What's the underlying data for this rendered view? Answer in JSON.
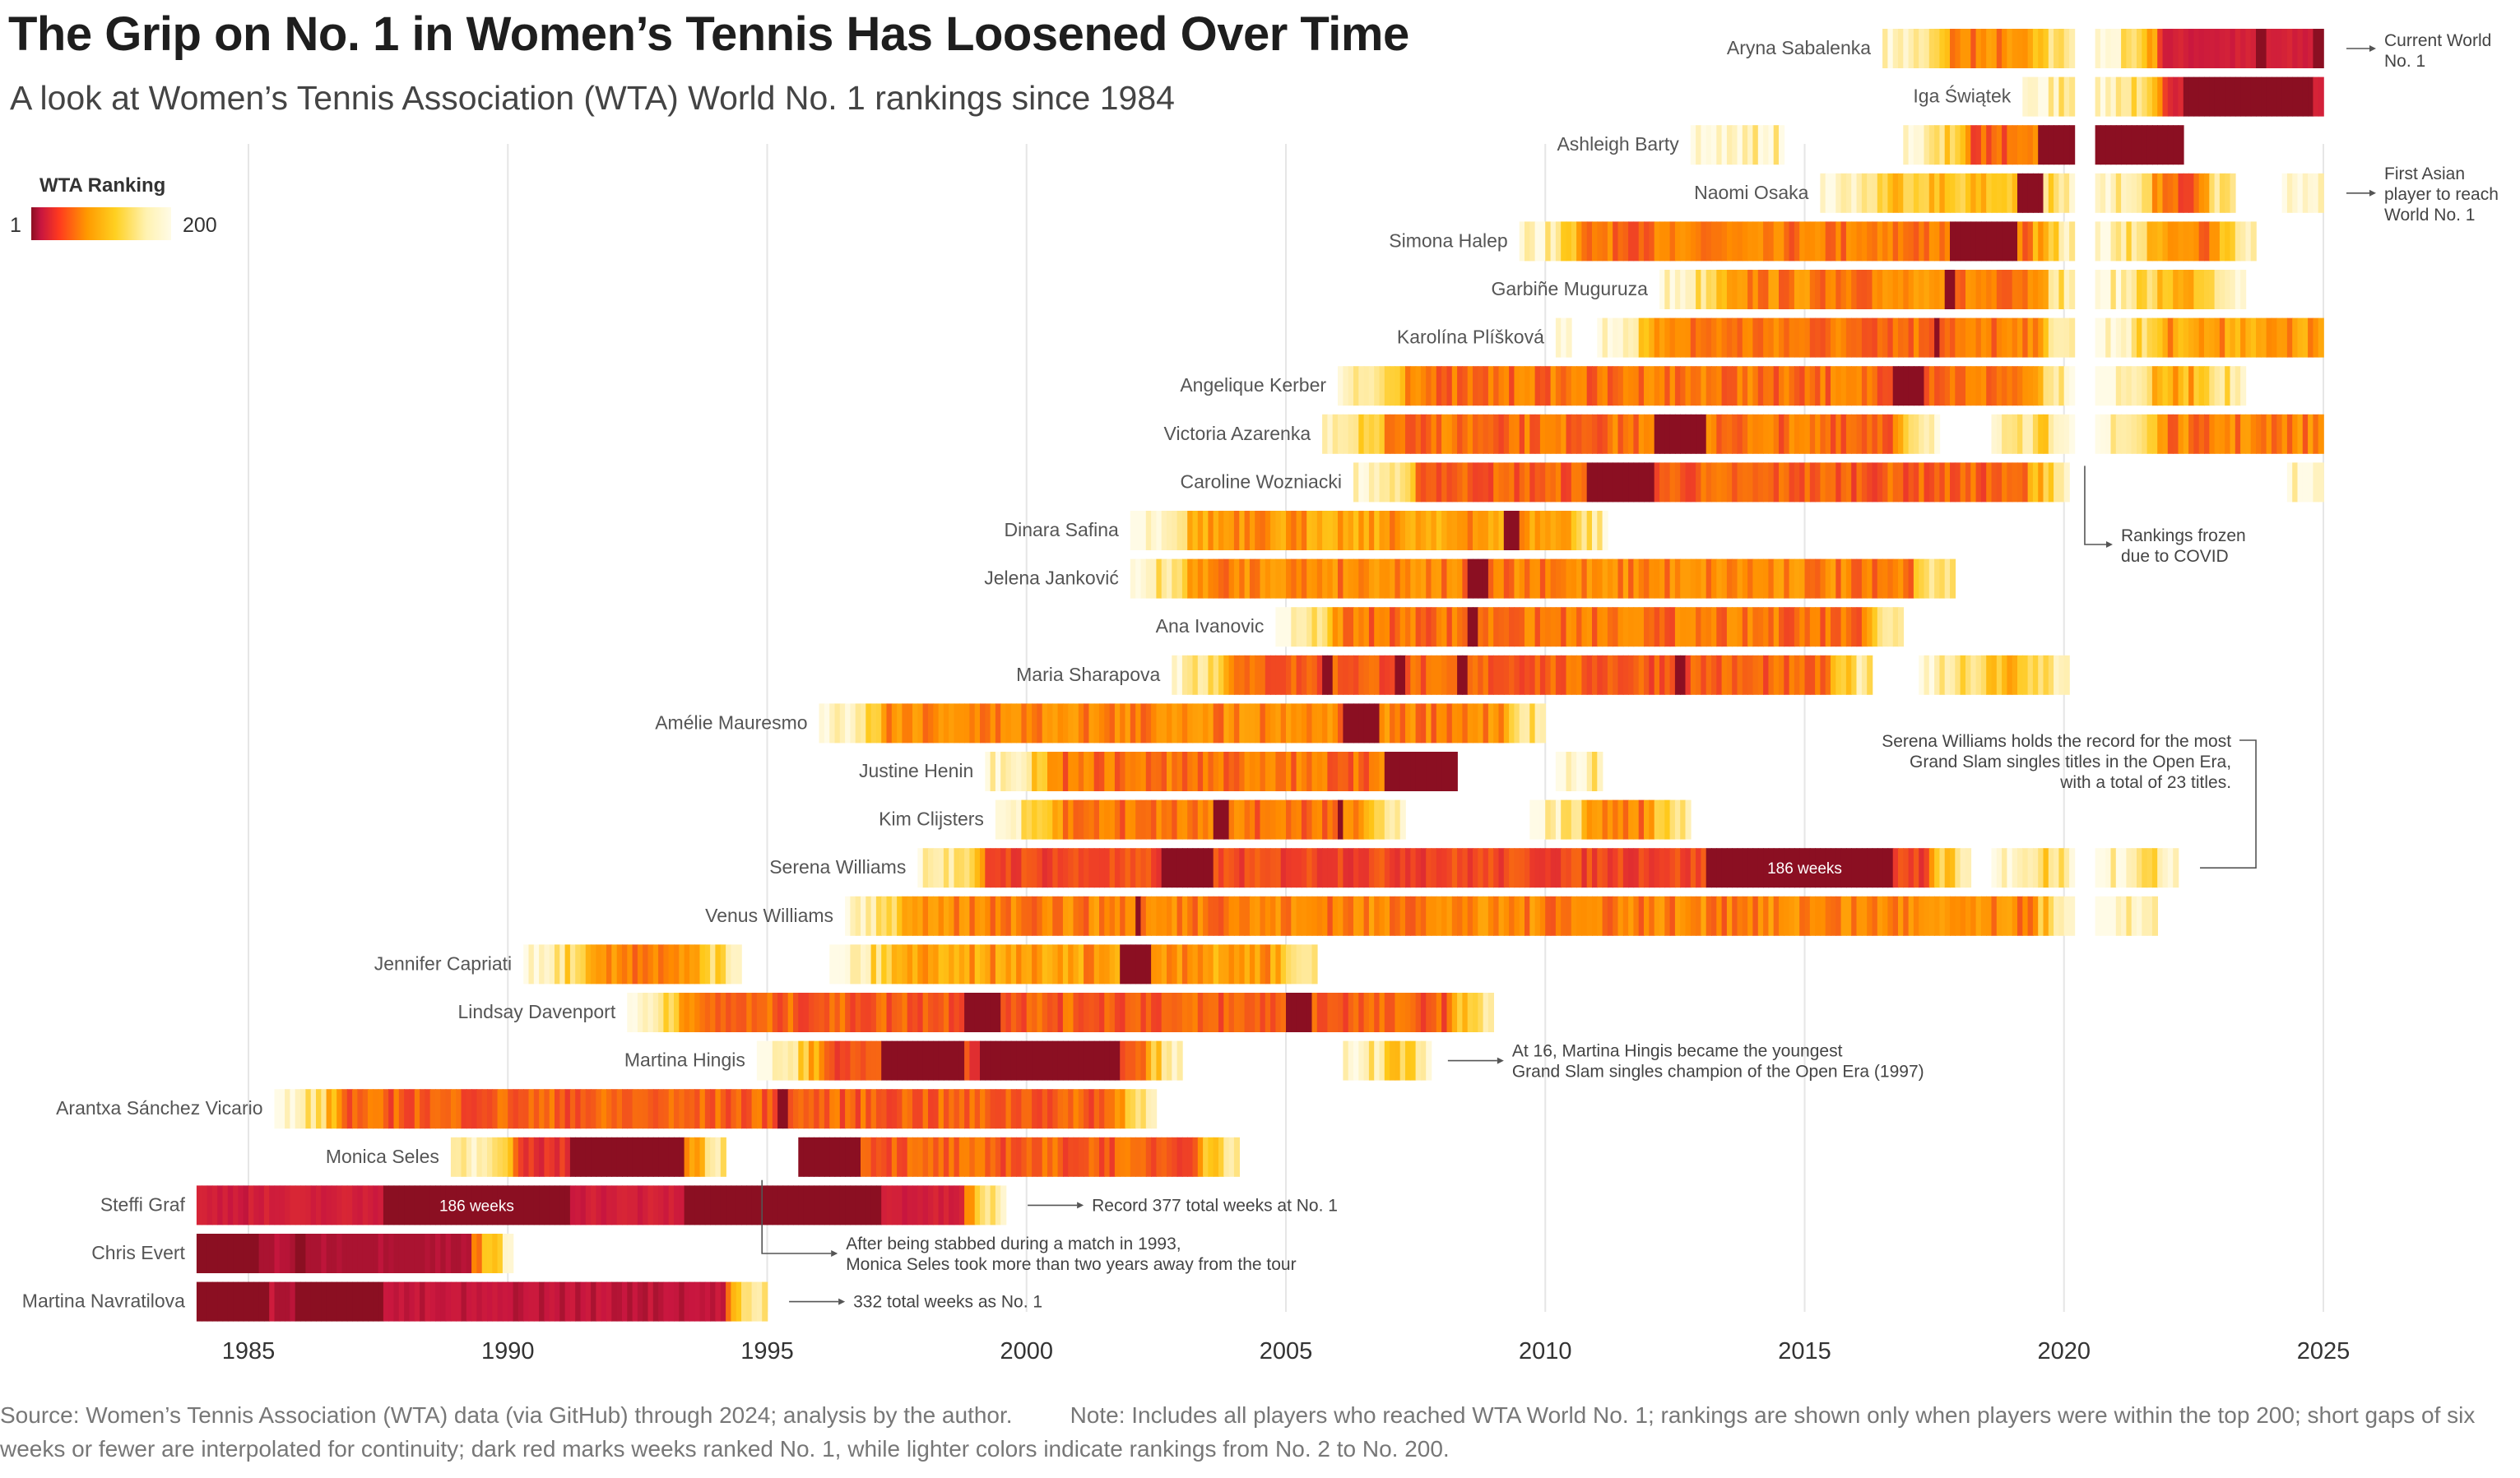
{
  "title": "The Grip on No. 1 in Women’s Tennis Has Loosened Over Time",
  "subtitle": "A look at Women’s Tennis Association (WTA) World No. 1 rankings since 1984",
  "legend": {
    "title": "WTA Ranking",
    "min_label": "1",
    "max_label": "200"
  },
  "footer": {
    "source": "Source: Women’s Tennis Association (WTA) data (via GitHub) through 2024; analysis by the author.",
    "note": "Note: Includes all players who reached WTA World No. 1; rankings are shown only when players were within the top 200; short gaps of six weeks or fewer are interpolated for continuity; dark red marks weeks ranked No. 1, while lighter colors indicate rankings from No. 2 to No. 200."
  },
  "colors": {
    "no1": "#8b0f22",
    "grid": "#e6e6e6",
    "text": "#333333"
  },
  "chart_data": {
    "type": "heatmap",
    "x_axis": {
      "ticks": [
        1985,
        1990,
        1995,
        2000,
        2005,
        2010,
        2015,
        2020,
        2025
      ],
      "range": [
        1984,
        2025.2
      ]
    },
    "color_scale": {
      "metric": "WTA Ranking",
      "min": 1,
      "max": 200
    },
    "players": [
      {
        "name": "Aryna Sabalenka",
        "segments": [
          [
            2016.5,
            2020.2,
            30
          ],
          [
            2020.6,
            2025.0,
            5
          ]
        ],
        "no1": [
          [
            2023.7,
            2023.9
          ],
          [
            2024.8,
            2025.0
          ]
        ]
      },
      {
        "name": "Iga Świątek",
        "segments": [
          [
            2019.2,
            2020.2,
            70
          ],
          [
            2020.6,
            2025.0,
            10
          ]
        ],
        "no1": [
          [
            2022.3,
            2024.8
          ]
        ]
      },
      {
        "name": "Ashleigh Barty",
        "segments": [
          [
            2012.8,
            2014.6,
            160
          ],
          [
            2016.9,
            2020.2,
            20
          ],
          [
            2020.6,
            2022.3,
            1
          ]
        ],
        "no1": [
          [
            2019.5,
            2020.2
          ],
          [
            2020.6,
            2022.3
          ]
        ]
      },
      {
        "name": "Naomi Osaka",
        "segments": [
          [
            2015.3,
            2020.2,
            60
          ],
          [
            2020.6,
            2023.3,
            20
          ],
          [
            2024.2,
            2025.0,
            90
          ]
        ],
        "no1": [
          [
            2019.1,
            2019.6
          ]
        ]
      },
      {
        "name": "Simona Halep",
        "segments": [
          [
            2009.5,
            2020.2,
            25
          ],
          [
            2020.6,
            2023.7,
            30
          ]
        ],
        "no1": [
          [
            2017.8,
            2019.1
          ]
        ]
      },
      {
        "name": "Garbiñe Muguruza",
        "segments": [
          [
            2012.2,
            2020.2,
            30
          ],
          [
            2020.6,
            2023.5,
            50
          ]
        ],
        "no1": [
          [
            2017.7,
            2017.9
          ]
        ]
      },
      {
        "name": "Karolína Plíšková",
        "segments": [
          [
            2010.2,
            2010.5,
            180
          ],
          [
            2011.0,
            2020.2,
            25
          ],
          [
            2020.6,
            2025.0,
            40
          ]
        ],
        "no1": [
          [
            2017.5,
            2017.6
          ]
        ]
      },
      {
        "name": "Angelique Kerber",
        "segments": [
          [
            2006.0,
            2020.2,
            25
          ],
          [
            2020.6,
            2023.5,
            50
          ]
        ],
        "no1": [
          [
            2016.7,
            2017.3
          ]
        ]
      },
      {
        "name": "Victoria Azarenka",
        "segments": [
          [
            2005.7,
            2017.6,
            25
          ],
          [
            2018.6,
            2020.2,
            60
          ],
          [
            2020.6,
            2025.0,
            30
          ]
        ],
        "no1": [
          [
            2012.1,
            2013.1
          ]
        ]
      },
      {
        "name": "Caroline Wozniacki",
        "segments": [
          [
            2006.3,
            2020.1,
            20
          ],
          [
            2024.3,
            2025.0,
            80
          ]
        ],
        "no1": [
          [
            2010.8,
            2012.1
          ]
        ]
      },
      {
        "name": "Dinara Safina",
        "segments": [
          [
            2002.0,
            2011.2,
            40
          ]
        ],
        "no1": [
          [
            2009.2,
            2009.5
          ]
        ]
      },
      {
        "name": "Jelena Janković",
        "segments": [
          [
            2002.0,
            2017.9,
            30
          ]
        ],
        "no1": [
          [
            2008.5,
            2008.9
          ]
        ]
      },
      {
        "name": "Ana Ivanovic",
        "segments": [
          [
            2004.8,
            2016.9,
            25
          ]
        ],
        "no1": [
          [
            2008.5,
            2008.7
          ]
        ]
      },
      {
        "name": "Maria Sharapova",
        "segments": [
          [
            2002.8,
            2016.3,
            20
          ],
          [
            2017.2,
            2020.1,
            60
          ]
        ],
        "no1": [
          [
            2005.7,
            2005.9
          ],
          [
            2007.1,
            2007.3
          ],
          [
            2008.3,
            2008.5
          ],
          [
            2012.5,
            2012.7
          ]
        ]
      },
      {
        "name": "Amélie Mauresmo",
        "segments": [
          [
            1996.0,
            2010.0,
            30
          ]
        ],
        "no1": [
          [
            2006.1,
            2006.8
          ]
        ]
      },
      {
        "name": "Justine Henin",
        "segments": [
          [
            1999.2,
            2008.3,
            25
          ],
          [
            2010.2,
            2011.1,
            40
          ]
        ],
        "no1": [
          [
            2006.9,
            2008.3
          ]
        ]
      },
      {
        "name": "Kim Clijsters",
        "segments": [
          [
            1999.4,
            2007.3,
            25
          ],
          [
            2009.7,
            2012.8,
            30
          ]
        ],
        "no1": [
          [
            2003.6,
            2003.9
          ],
          [
            2006.0,
            2006.1
          ]
        ]
      },
      {
        "name": "Serena Williams",
        "segments": [
          [
            1997.9,
            2018.2,
            15
          ],
          [
            2018.6,
            2020.2,
            30
          ],
          [
            2020.6,
            2022.2,
            50
          ]
        ],
        "no1": [
          [
            2002.6,
            2003.6
          ],
          [
            2013.1,
            2016.7
          ]
        ]
      },
      {
        "name": "Venus Williams",
        "segments": [
          [
            1996.5,
            2020.2,
            30
          ],
          [
            2020.6,
            2021.8,
            120
          ]
        ],
        "no1": [
          [
            2002.1,
            2002.2
          ]
        ]
      },
      {
        "name": "Jennifer Capriati",
        "segments": [
          [
            1990.3,
            1994.5,
            30
          ],
          [
            1996.2,
            2005.6,
            40
          ]
        ],
        "no1": [
          [
            2001.8,
            2002.4
          ]
        ]
      },
      {
        "name": "Lindsay Davenport",
        "segments": [
          [
            1992.3,
            2009.0,
            20
          ]
        ],
        "no1": [
          [
            1998.8,
            1999.5
          ],
          [
            2005.0,
            2005.5
          ]
        ]
      },
      {
        "name": "Martina Hingis",
        "segments": [
          [
            1994.8,
            2003.0,
            15
          ],
          [
            2006.1,
            2007.8,
            40
          ]
        ],
        "no1": [
          [
            1997.2,
            1998.8
          ],
          [
            1999.1,
            2001.8
          ]
        ]
      },
      {
        "name": "Arantxa Sánchez Vicario",
        "segments": [
          [
            1985.5,
            2002.5,
            20
          ]
        ],
        "no1": [
          [
            1995.2,
            1995.4
          ]
        ]
      },
      {
        "name": "Monica Seles",
        "segments": [
          [
            1988.9,
            1994.2,
            10
          ],
          [
            1995.6,
            2004.1,
            20
          ]
        ],
        "no1": [
          [
            1991.2,
            1993.4
          ],
          [
            1995.6,
            1996.8
          ]
        ]
      },
      {
        "name": "Steffi Graf",
        "segments": [
          [
            1984.0,
            1999.6,
            5
          ]
        ],
        "no1": [
          [
            1987.6,
            1991.2
          ],
          [
            1993.4,
            1997.2
          ]
        ]
      },
      {
        "name": "Chris Evert",
        "segments": [
          [
            1984.0,
            1990.1,
            2
          ]
        ],
        "no1": [
          [
            1984.0,
            1985.2
          ],
          [
            1985.9,
            1986.1
          ]
        ]
      },
      {
        "name": "Martina Navratilova",
        "segments": [
          [
            1984.0,
            1995.0,
            3
          ]
        ],
        "no1": [
          [
            1984.0,
            1985.4
          ],
          [
            1985.9,
            1987.6
          ]
        ]
      }
    ],
    "bar_labels": [
      {
        "player": "Steffi Graf",
        "x": 1989.4,
        "text": "186 weeks"
      },
      {
        "player": "Serena Williams",
        "x": 2015.0,
        "text": "186 weeks"
      }
    ],
    "annotations": [
      {
        "player": "Aryna Sabalenka",
        "text": [
          "Current World",
          "No. 1"
        ],
        "type": "right"
      },
      {
        "player": "Naomi Osaka",
        "text": [
          "First Asian",
          "player to reach",
          "World No. 1"
        ],
        "type": "right"
      },
      {
        "player": "Caroline Wozniacki",
        "text": [
          "Rankings frozen",
          "due to COVID"
        ],
        "type": "covid",
        "x": 2020.4
      },
      {
        "player": "Serena Williams",
        "text": [
          "Serena Williams holds the record for the most",
          "Grand Slam singles titles in the Open Era,",
          "with a total of 23 titles."
        ],
        "type": "bracket"
      },
      {
        "player": "Martina Hingis",
        "text": [
          "At 16, Martina Hingis became the youngest",
          "Grand Slam singles champion of the Open Era (1997)"
        ],
        "type": "arrow",
        "x": 2007.9
      },
      {
        "player": "Steffi Graf",
        "text": [
          "Record 377 total weeks at No. 1"
        ],
        "type": "arrow",
        "x": 1999.8
      },
      {
        "player": "Monica Seles",
        "text": [
          "After being stabbed during a match in 1993,",
          "Monica Seles took more than two years away from the tour"
        ],
        "type": "elbow",
        "x": 1994.9
      },
      {
        "player": "Martina Navratilova",
        "text": [
          "332 total weeks as No. 1"
        ],
        "type": "arrow",
        "x": 1995.2
      }
    ]
  }
}
